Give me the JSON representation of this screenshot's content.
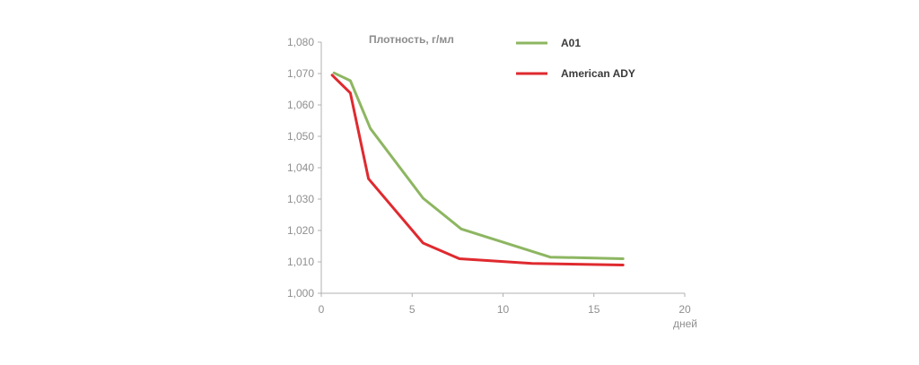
{
  "chart_data": {
    "type": "line",
    "ylabel": "Плотность, г/мл",
    "xlabel": "дней",
    "xlim": [
      0,
      20
    ],
    "ylim": [
      1.0,
      1.08
    ],
    "x_ticks": [
      "0",
      "5",
      "10",
      "15",
      "20"
    ],
    "y_ticks": [
      "1,000",
      "1,010",
      "1,020",
      "1,030",
      "1,040",
      "1,050",
      "1,060",
      "1,070",
      "1,080"
    ],
    "grid": false,
    "legend_position": "top-right",
    "series": [
      {
        "name": "A01",
        "color": "#8db661",
        "x": [
          0.7,
          1.6,
          2.7,
          5.6,
          7.7,
          12.6,
          16.6
        ],
        "y": [
          1.0702,
          1.0677,
          1.0525,
          1.0303,
          1.0205,
          1.0115,
          1.011
        ]
      },
      {
        "name": "American ADY",
        "color": "#df2a2f",
        "x": [
          0.6,
          1.6,
          2.6,
          5.6,
          7.6,
          11.6,
          16.6
        ],
        "y": [
          1.0695,
          1.0638,
          1.0365,
          1.016,
          1.011,
          1.0095,
          1.009
        ]
      }
    ]
  }
}
